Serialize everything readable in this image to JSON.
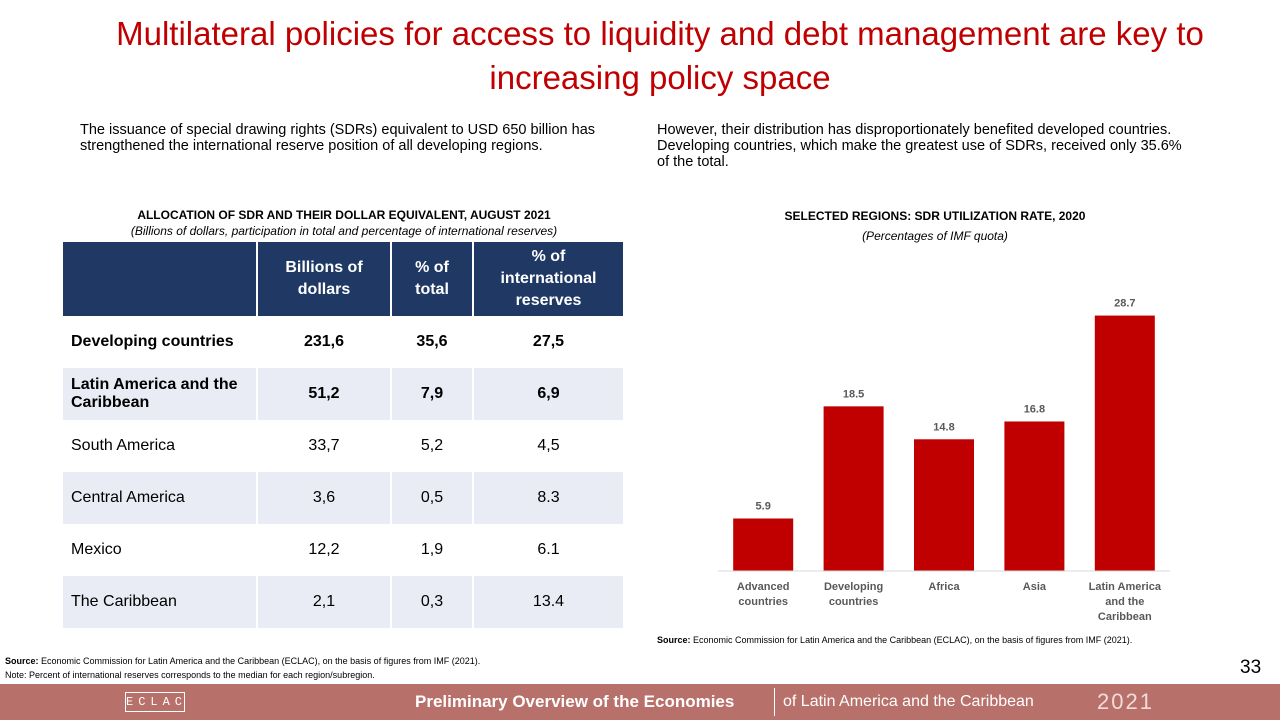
{
  "header": {
    "title": "Multilateral policies for access to liquidity and debt management are key to increasing policy space"
  },
  "left_text": "The issuance of special drawing rights (SDRs) equivalent to USD 650 billion has strengthened the international reserve position of all developing regions.",
  "right_text": "However, their distribution has disproportionately benefited developed countries. Developing countries, which make the greatest use of SDRs, received only 35.6% of the total.",
  "table": {
    "title": "ALLOCATION OF SDR AND THEIR DOLLAR EQUIVALENT, AUGUST 2021",
    "subtitle": "(Billions of dollars, participation in total and percentage of international reserves)",
    "columns": [
      "Billions of dollars",
      "% of total",
      "% of international reserves"
    ],
    "rows": [
      [
        "Developing countries",
        "231,6",
        "35,6",
        "27,5"
      ],
      [
        "Latin America and the Caribbean",
        "51,2",
        "7,9",
        "6,9"
      ],
      [
        "South America",
        "33,7",
        "5,2",
        "4,5"
      ],
      [
        "Central America",
        "3,6",
        "0,5",
        "8.3"
      ],
      [
        "Mexico",
        "12,2",
        "1,9",
        "6.1"
      ],
      [
        "The Caribbean",
        "2,1",
        "0,3",
        "13.4"
      ]
    ],
    "source_label": "Source:",
    "source": "Economic Commission for Latin America and the Caribbean (ECLAC), on the basis of figures from IMF (2021).",
    "note": "Note: Percent of international reserves corresponds to the median for each region/subregion."
  },
  "chart_data": {
    "type": "bar",
    "title": "SELECTED REGIONS: SDR UTILIZATION RATE, 2020",
    "subtitle": "(Percentages of IMF quota)",
    "categories": [
      "Advanced countries",
      "Developing countries",
      "Africa",
      "Asia",
      "Latin America and the Caribbean"
    ],
    "values": [
      5.9,
      18.5,
      14.8,
      16.8,
      28.7
    ],
    "color": "#c00000",
    "ylim": [
      0,
      30
    ],
    "source_label": "Source:",
    "source": "Economic Commission for Latin America and the Caribbean (ECLAC), on the basis of figures from IMF (2021)."
  },
  "page_number": "33",
  "footer": {
    "logo": "ECLAC",
    "title": "Preliminary Overview of the Economies",
    "subtitle": "of Latin America and the Caribbean",
    "year": "2021"
  }
}
